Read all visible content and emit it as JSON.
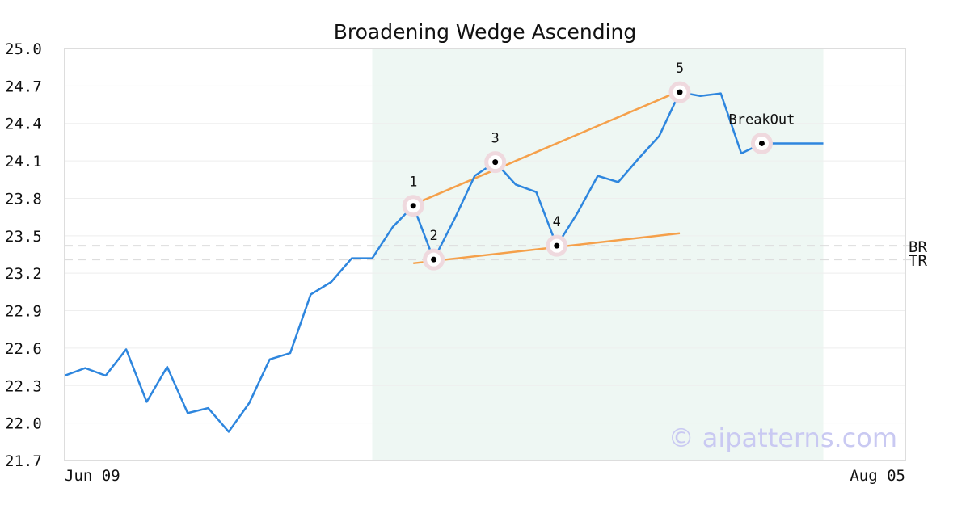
{
  "chart_data": {
    "type": "line",
    "title": "Broadening Wedge Ascending",
    "watermark": "© aipatterns.com",
    "ylim": [
      21.7,
      25.0
    ],
    "yticks": [
      "25.0",
      "24.7",
      "24.4",
      "24.1",
      "23.8",
      "23.5",
      "23.2",
      "22.9",
      "22.6",
      "22.3",
      "22.0",
      "21.7"
    ],
    "xtick_labels": [
      {
        "index": 0,
        "label": "Jun 09"
      },
      {
        "index": 41,
        "label": "Aug 05"
      }
    ],
    "series": [
      {
        "color": "#2e86de",
        "values": [
          22.38,
          22.44,
          22.38,
          22.59,
          22.17,
          22.45,
          22.08,
          22.12,
          21.93,
          22.16,
          22.51,
          22.56,
          23.03,
          23.13,
          23.32,
          23.32,
          23.57,
          23.74,
          23.31,
          23.63,
          23.98,
          24.09,
          23.91,
          23.85,
          23.42,
          23.68,
          23.98,
          23.93,
          24.12,
          24.3,
          24.65,
          24.62,
          24.64,
          24.16,
          24.24,
          24.24,
          24.24,
          24.24
        ]
      }
    ],
    "highlight_range": {
      "from_index": 15,
      "to_index": 37,
      "color": "#eef7f3"
    },
    "trendlines": [
      {
        "color": "#f5a04a",
        "from": {
          "index": 17,
          "value": 23.75
        },
        "to": {
          "index": 30,
          "value": 24.66
        }
      },
      {
        "color": "#f5a04a",
        "from": {
          "index": 17,
          "value": 23.28
        },
        "to": {
          "index": 30,
          "value": 23.52
        }
      }
    ],
    "annotations": [
      {
        "label": "1",
        "index": 17,
        "value": 23.74
      },
      {
        "label": "2",
        "index": 18,
        "value": 23.31
      },
      {
        "label": "3",
        "index": 21,
        "value": 24.09
      },
      {
        "label": "4",
        "index": 24,
        "value": 23.42
      },
      {
        "label": "5",
        "index": 30,
        "value": 24.65
      },
      {
        "label": "BreakOut",
        "index": 34,
        "value": 24.24
      }
    ],
    "levels": [
      {
        "label": "BR",
        "value": 23.42
      },
      {
        "label": "TR",
        "value": 23.31
      }
    ],
    "grid": true
  }
}
